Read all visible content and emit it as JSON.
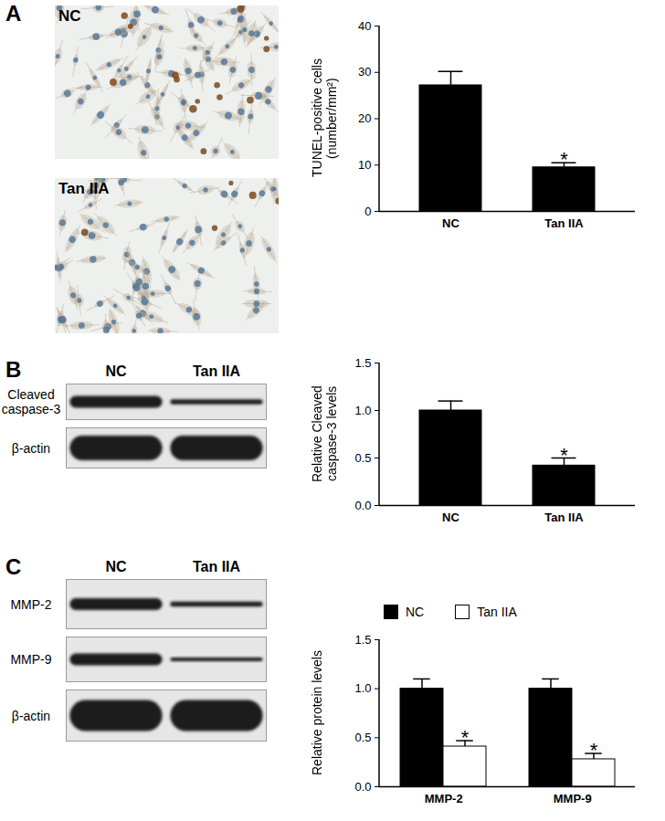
{
  "chart_data": [
    {
      "type": "bar",
      "ylabel": "TUNEL-positive cells (number/mm²)",
      "categories": [
        "NC",
        "Tan IIA"
      ],
      "values": [
        27.2,
        9.5
      ],
      "errors": [
        3.0,
        1.0
      ],
      "color": "#000000",
      "ylim": [
        0,
        40
      ],
      "yticks": [
        0,
        10,
        20,
        30,
        40
      ],
      "annotations": [
        {
          "category": "Tan IIA",
          "text": "*"
        }
      ]
    },
    {
      "type": "bar",
      "ylabel": "Relative Cleaved caspase-3 levels",
      "categories": [
        "NC",
        "Tan IIA"
      ],
      "values": [
        1.0,
        0.42
      ],
      "errors": [
        0.1,
        0.08
      ],
      "color": "#000000",
      "ylim": [
        0,
        1.5
      ],
      "yticks": [
        {
          "value": 0,
          "label": "0.0"
        },
        {
          "value": 0.5,
          "label": "0.5"
        },
        {
          "value": 1,
          "label": "1.0"
        },
        {
          "value": 1.5,
          "label": "1.5"
        }
      ],
      "annotations": [
        {
          "category": "Tan IIA",
          "text": "*"
        }
      ]
    },
    {
      "type": "bar",
      "ylabel": "Relative protein levels",
      "categories": [
        "MMP-2",
        "MMP-9"
      ],
      "series": [
        {
          "name": "NC",
          "color": "#000000",
          "values": [
            1.0,
            1.0
          ],
          "errors": [
            0.1,
            0.1
          ]
        },
        {
          "name": "Tan IIA",
          "color": "#ffffff",
          "values": [
            0.41,
            0.28
          ],
          "errors": [
            0.06,
            0.06
          ]
        }
      ],
      "legend": "top",
      "ylim": [
        0,
        1.5
      ],
      "yticks": [
        {
          "value": 0,
          "label": "0.0"
        },
        {
          "value": 0.5,
          "label": "0.5"
        },
        {
          "value": 1,
          "label": "1.0"
        },
        {
          "value": 1.5,
          "label": "1.5"
        }
      ],
      "annotations": [
        {
          "category": "MMP-2",
          "series": "Tan IIA",
          "text": "*"
        },
        {
          "category": "MMP-9",
          "series": "Tan IIA",
          "text": "*"
        }
      ]
    }
  ],
  "panels": [
    {
      "letter": "A",
      "micrographs": [
        "NC",
        "Tan IIA"
      ]
    },
    {
      "letter": "B",
      "blot": {
        "lanes": [
          "NC",
          "Tan IIA"
        ],
        "rows": [
          "Cleaved caspase-3",
          "β-actin"
        ]
      }
    },
    {
      "letter": "C",
      "blot": {
        "lanes": [
          "NC",
          "Tan IIA"
        ],
        "rows": [
          "MMP-2",
          "MMP-9",
          "β-actin"
        ]
      }
    }
  ]
}
